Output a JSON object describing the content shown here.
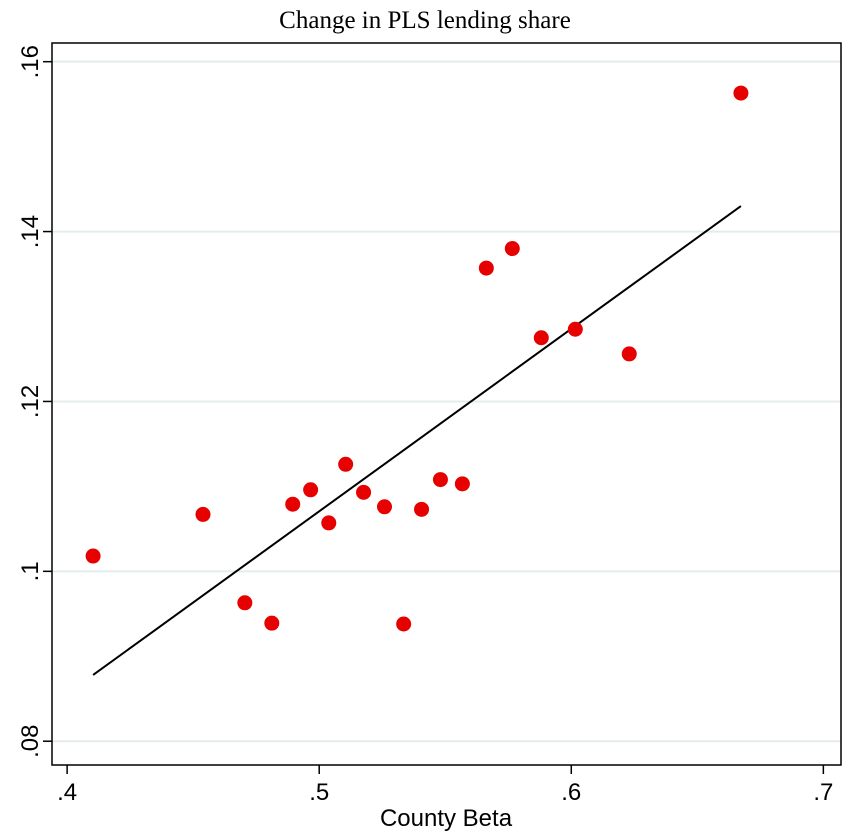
{
  "chart_data": {
    "type": "scatter",
    "title": "Change in PLS lending share",
    "x_label": "County Beta",
    "series": [
      {
        "color": "#e60000",
        "x": [
          0.4103,
          0.4539,
          0.4705,
          0.4812,
          0.4895,
          0.4966,
          0.5038,
          0.5105,
          0.5176,
          0.5259,
          0.5335,
          0.5406,
          0.5481,
          0.5568,
          0.5663,
          0.5766,
          0.5881,
          0.6016,
          0.623,
          0.6673
        ],
        "values": [
          0.1018,
          0.1067,
          0.0963,
          0.0939,
          0.1079,
          0.1096,
          0.1057,
          0.1126,
          0.1093,
          0.1076,
          0.0938,
          0.1073,
          0.1108,
          0.1103,
          0.1357,
          0.138,
          0.1275,
          0.1285,
          0.1256,
          0.1563
        ]
      }
    ],
    "fit_line": {
      "color": "#000000",
      "x": [
        0.4103,
        0.6673
      ],
      "values": [
        0.0878,
        0.143
      ]
    },
    "xlim": [
      0.394,
      0.707
    ],
    "ylim": [
      0.0772,
      0.1622
    ],
    "xticks": [
      {
        "value": 0.4,
        "label": ".4"
      },
      {
        "value": 0.5,
        "label": ".5"
      },
      {
        "value": 0.6,
        "label": ".6"
      },
      {
        "value": 0.7,
        "label": ".7"
      }
    ],
    "yticks": [
      {
        "value": 0.08,
        "label": ".08"
      },
      {
        "value": 0.1,
        "label": ".1"
      },
      {
        "value": 0.12,
        "label": ".12"
      },
      {
        "value": 0.14,
        "label": ".14"
      },
      {
        "value": 0.16,
        "label": ".16"
      }
    ],
    "grid": true
  }
}
